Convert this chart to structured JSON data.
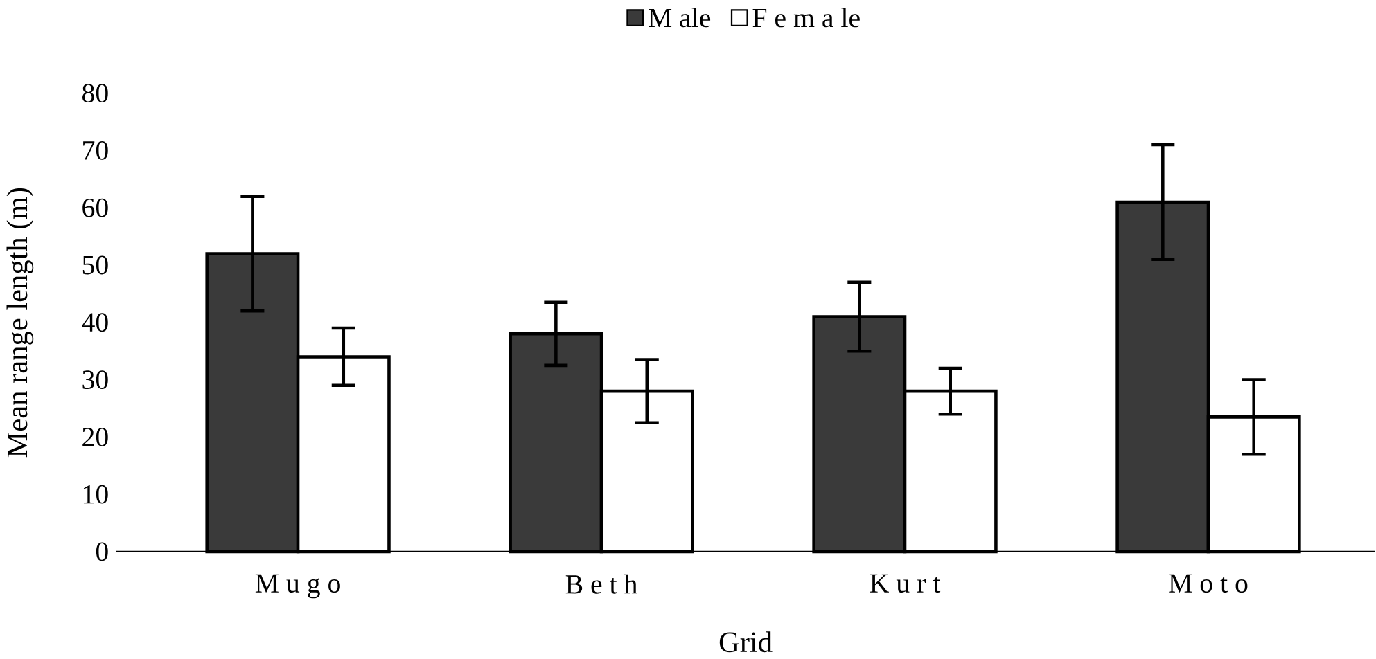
{
  "chart_data": {
    "type": "bar",
    "xlabel": "Grid",
    "ylabel": "Mean range length (m)",
    "categories": [
      "M u g o",
      "B e t h",
      "K u r t",
      "M o t o"
    ],
    "series": [
      {
        "name": "M ale",
        "color": "#3a3a3a",
        "values": [
          52,
          38,
          41,
          61
        ],
        "errors": [
          10,
          5.5,
          6,
          10
        ]
      },
      {
        "name": "F e m a le",
        "color": "#ffffff",
        "values": [
          34,
          28,
          28,
          23.5
        ],
        "errors": [
          5,
          5.5,
          4,
          6.5
        ]
      }
    ],
    "ylim": [
      0,
      80
    ],
    "yticks": [
      0,
      10,
      20,
      30,
      40,
      50,
      60,
      70,
      80
    ],
    "legend": "top",
    "grid": false
  }
}
